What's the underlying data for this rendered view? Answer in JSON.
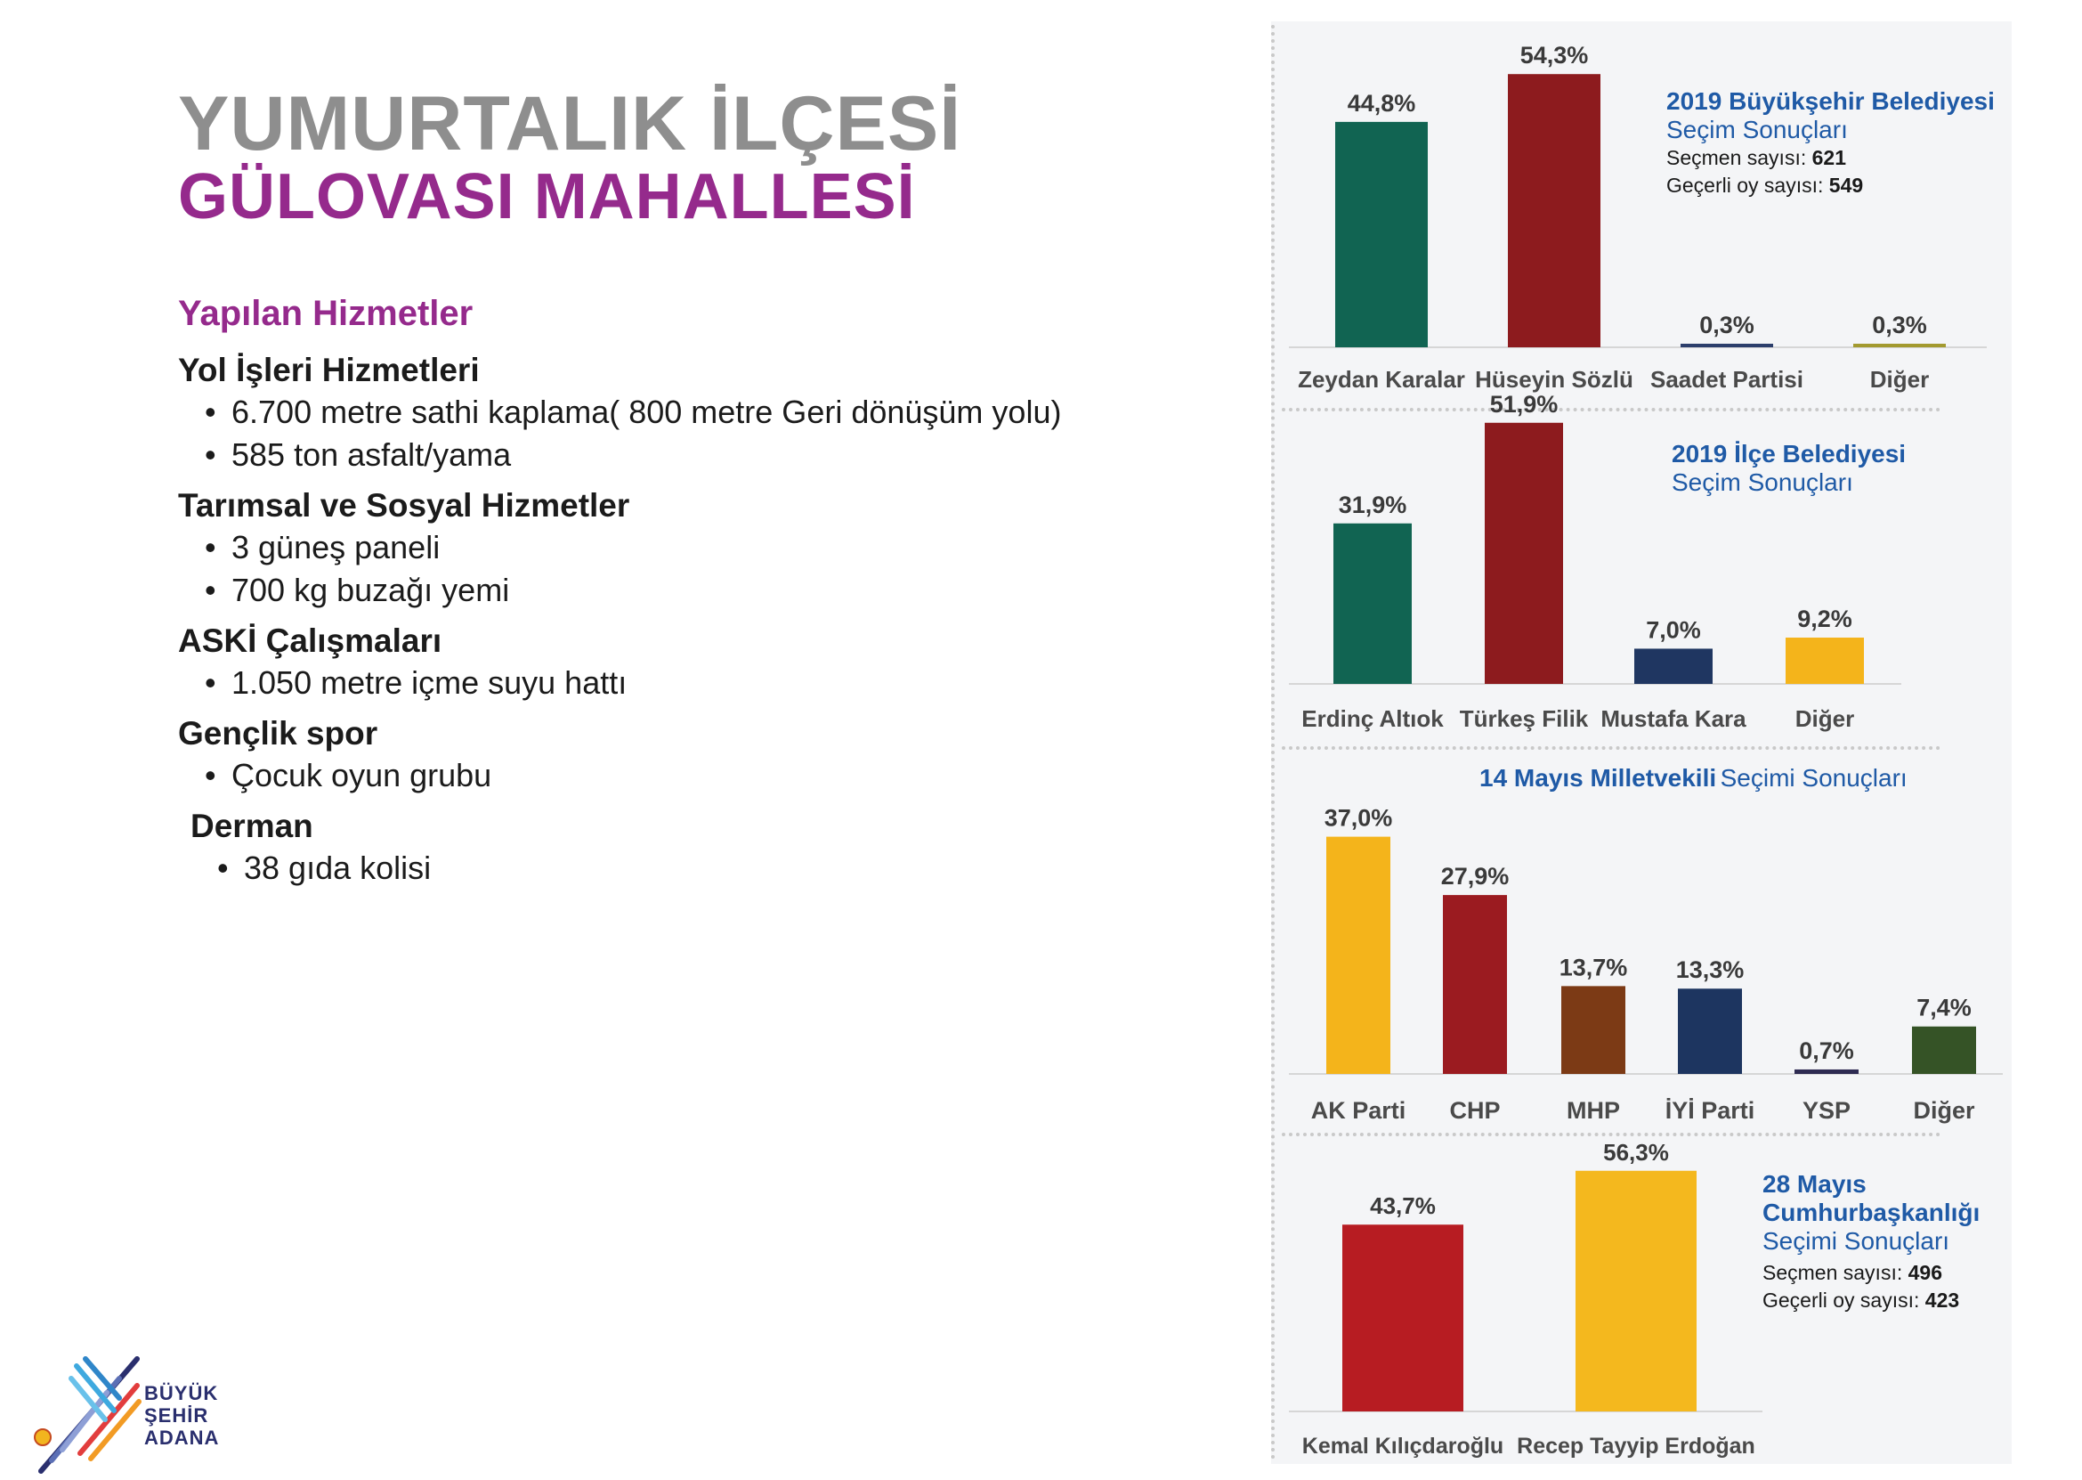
{
  "header": {
    "title_line1": "YUMURTALIK İLÇESİ",
    "title_line2": "GÜLOVASI MAHALLESİ"
  },
  "services": {
    "heading": "Yapılan Hizmetler",
    "sections": [
      {
        "title": "Yol İşleri Hizmetleri",
        "items": [
          "6.700 metre sathi kaplama( 800 metre Geri dönüşüm yolu)",
          "585 ton asfalt/yama"
        ]
      },
      {
        "title": "Tarımsal ve Sosyal Hizmetler",
        "items": [
          "3 güneş paneli",
          "700 kg buzağı yemi"
        ]
      },
      {
        "title": "ASKİ Çalışmaları",
        "items": [
          "1.050 metre içme suyu hattı"
        ]
      },
      {
        "title": "Gençlik spor",
        "items": [
          "Çocuk oyun grubu"
        ]
      },
      {
        "title": "Derman",
        "items": [
          "38 gıda kolisi"
        ]
      }
    ]
  },
  "logo": {
    "line1": "BÜYÜK",
    "line2": "ŞEHİR",
    "line3": "ADANA"
  },
  "chart_data": [
    {
      "type": "bar",
      "title": "2019 Büyükşehir Belediyesi",
      "subtitle": "Seçim Sonuçları",
      "stats": [
        {
          "label": "Seçmen sayısı:",
          "value": "621"
        },
        {
          "label": "Geçerli oy sayısı:",
          "value": "549"
        }
      ],
      "categories": [
        "Zeydan Karalar",
        "Hüseyin Sözlü",
        "Saadet Partisi",
        "Diğer"
      ],
      "values": [
        44.8,
        54.3,
        0.3,
        0.3
      ],
      "labels": [
        "44,8%",
        "54,3%",
        "0,3%",
        "0,3%"
      ],
      "colors": [
        "#116452",
        "#8d1b1e",
        "#2c3e6b",
        "#a39a2f"
      ]
    },
    {
      "type": "bar",
      "title": "2019 İlçe Belediyesi",
      "subtitle": "Seçim Sonuçları",
      "stats": [],
      "categories": [
        "Erdinç Altıok",
        "Türkeş Filik",
        "Mustafa Kara",
        "Diğer"
      ],
      "values": [
        31.9,
        51.9,
        7.0,
        9.2
      ],
      "labels": [
        "31,9%",
        "51,9%",
        "7,0%",
        "9,2%"
      ],
      "colors": [
        "#116452",
        "#8d1b1e",
        "#1f3661",
        "#f4b41b"
      ]
    },
    {
      "type": "bar",
      "title": "14 Mayıs Milletvekili",
      "subtitle": "Seçimi Sonuçları",
      "stats": [],
      "categories": [
        "AK Parti",
        "CHP",
        "MHP",
        "İYİ Parti",
        "YSP",
        "Diğer"
      ],
      "values": [
        37.0,
        27.9,
        13.7,
        13.3,
        0.7,
        7.4
      ],
      "labels": [
        "37,0%",
        "27,9%",
        "13,7%",
        "13,3%",
        "0,7%",
        "7,4%"
      ],
      "colors": [
        "#f4b41b",
        "#9b1b20",
        "#7c3a15",
        "#1d3560",
        "#2e2b52",
        "#355326"
      ]
    },
    {
      "type": "bar",
      "title": "28 Mayıs Cumhurbaşkanlığı",
      "subtitle": "Seçimi Sonuçları",
      "stats": [
        {
          "label": "Seçmen sayısı:",
          "value": "496"
        },
        {
          "label": "Geçerli oy sayısı:",
          "value": "423"
        }
      ],
      "categories": [
        "Kemal Kılıçdaroğlu",
        "Recep Tayyip Erdoğan"
      ],
      "values": [
        43.7,
        56.3
      ],
      "labels": [
        "43,7%",
        "56,3%"
      ],
      "colors": [
        "#b71c22",
        "#f4b81e"
      ]
    }
  ]
}
